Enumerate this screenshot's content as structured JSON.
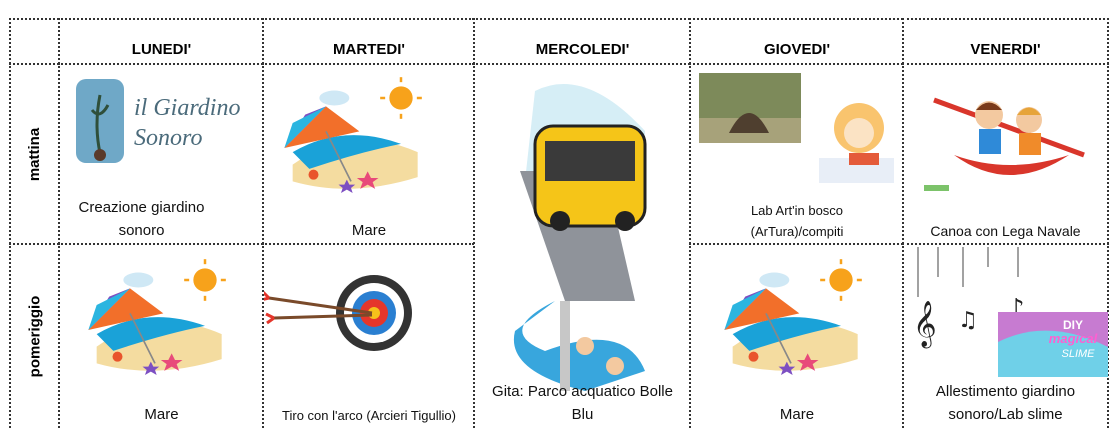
{
  "table": {
    "days": [
      "LUNEDI'",
      "MARTEDI'",
      "MERCOLEDI'",
      "GIOVEDI'",
      "VENERDI'"
    ],
    "rows": [
      {
        "label": "mattina",
        "cells": [
          "Creazione giardino sonoro",
          "Mare",
          "Lab Art'in bosco (ArTura)/compiti",
          "Canoa con Lega Navale"
        ]
      },
      {
        "label": "pomeriggio",
        "cells": [
          "Mare",
          "Tiro con l'arco (Arcieri Tigullio)",
          "Mare",
          "Allestimento giardino sonoro/Lab slime"
        ]
      }
    ],
    "wednesday": "Gita: Parco acquatico Bolle Blu",
    "logo": [
      "il Giardino",
      "Sonoro"
    ],
    "slime": [
      "DIY",
      "magical",
      "SLIME"
    ]
  }
}
